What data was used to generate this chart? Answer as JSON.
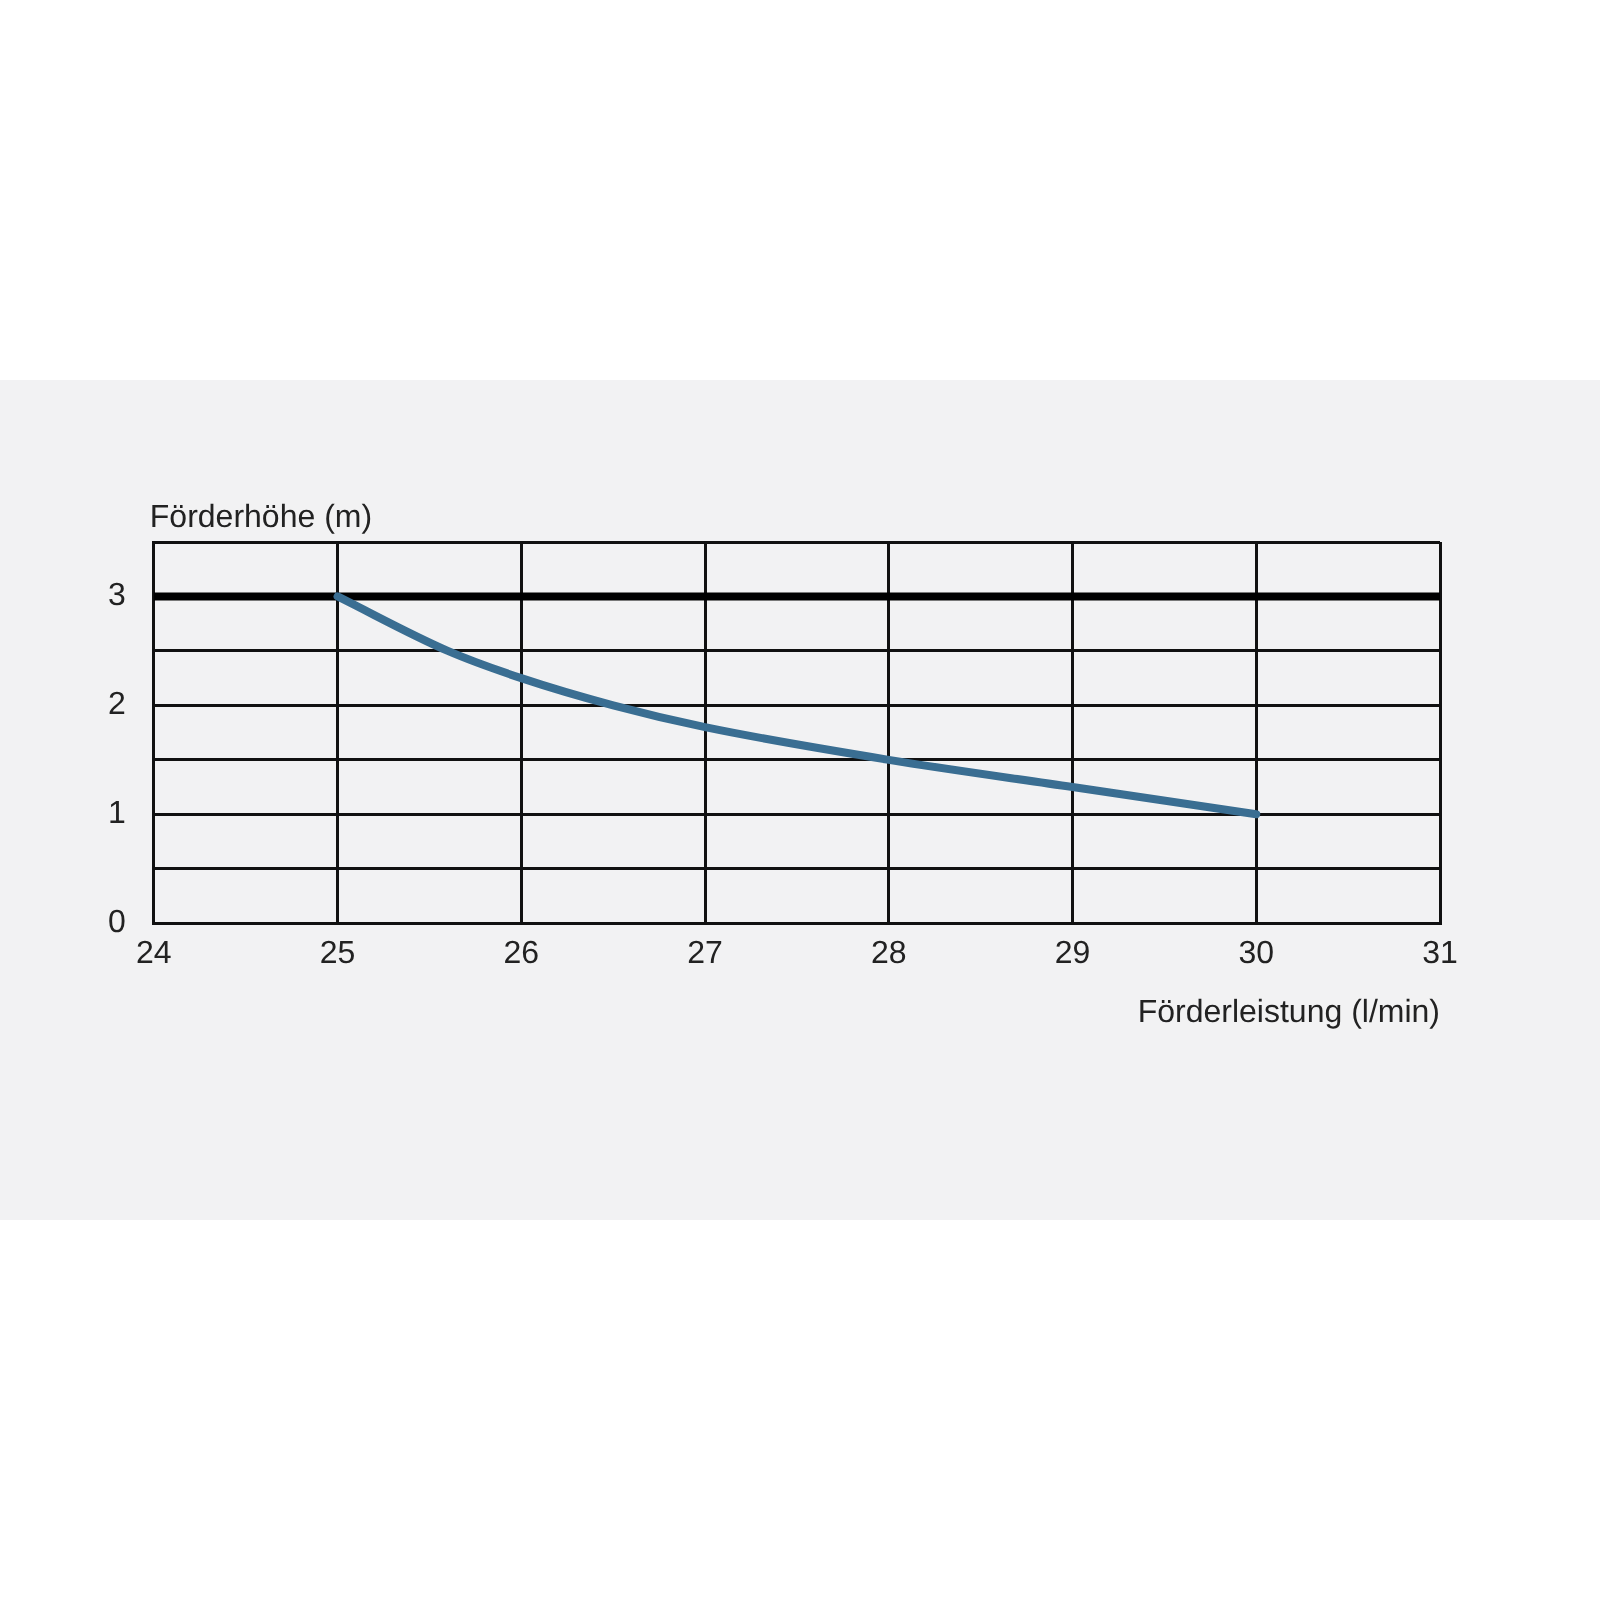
{
  "chart_data": {
    "type": "line",
    "xlabel": "Förderleistung (l/min)",
    "ylabel": "Förderhöhe (m)",
    "x": [
      25,
      25.6,
      26,
      26.5,
      27,
      28,
      29,
      30
    ],
    "series": [
      {
        "color": "#3a6e92",
        "values": [
          3,
          2.5,
          2.25,
          2,
          1.8,
          1.5,
          1.25,
          1
        ]
      }
    ],
    "xlim": [
      24,
      31
    ],
    "xticks": [
      24,
      25,
      26,
      27,
      28,
      29,
      30,
      31
    ],
    "ylim": [
      0,
      3.5
    ],
    "yticks": [
      0,
      {
        "value": 0.5,
        "label": null
      },
      1,
      {
        "value": 1.5,
        "label": null
      },
      2,
      {
        "value": 2.5,
        "label": null
      },
      3,
      {
        "value": 3.5,
        "label": null
      }
    ],
    "ref_lines": [
      {
        "axis": "y",
        "value": 3,
        "color": "#000000"
      }
    ],
    "grid": true,
    "legend": false,
    "marker": "none",
    "line_style": "solid"
  }
}
